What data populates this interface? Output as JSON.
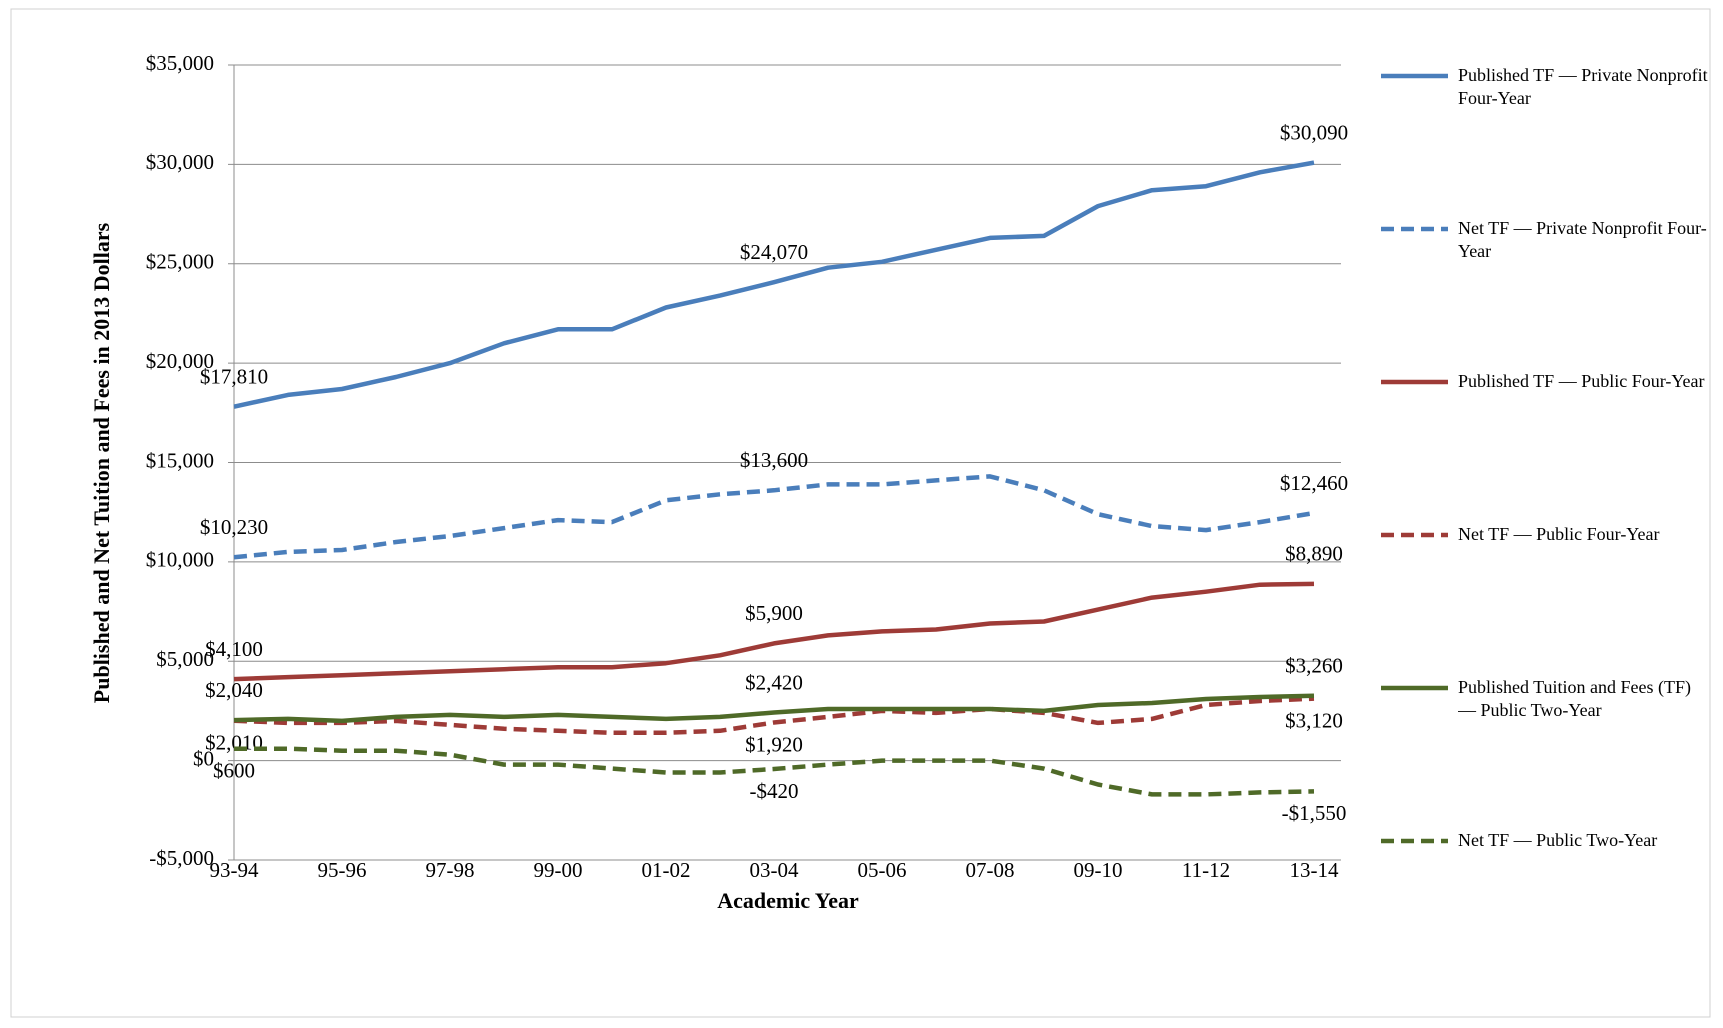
{
  "chart_data": {
    "type": "line",
    "x_label": "Academic Year",
    "y_label": "Published and Net Tuition and Fees in 2013 Dollars",
    "categories": [
      "93-94",
      null,
      "95-96",
      null,
      "97-98",
      null,
      "99-00",
      null,
      "01-02",
      null,
      "03-04",
      null,
      "05-06",
      null,
      "07-08",
      null,
      "09-10",
      null,
      "11-12",
      null,
      "13-14"
    ],
    "ylim": [
      -5000,
      35000
    ],
    "yticks": [
      {
        "value": -5000,
        "label": "-$5,000"
      },
      {
        "value": 0,
        "label": "$0"
      },
      {
        "value": 5000,
        "label": "$5,000"
      },
      {
        "value": 10000,
        "label": "$10,000"
      },
      {
        "value": 15000,
        "label": "$15,000"
      },
      {
        "value": 20000,
        "label": "$20,000"
      },
      {
        "value": 25000,
        "label": "$25,000"
      },
      {
        "value": 30000,
        "label": "$30,000"
      },
      {
        "value": 35000,
        "label": "$35,000"
      }
    ],
    "grid": true,
    "legend": "right",
    "series": [
      {
        "name": "Published TF — Private Nonprofit Four-Year",
        "color": "#4a7ebb",
        "dashed": false,
        "label_position": "above",
        "values": [
          17810,
          18400,
          18700,
          19300,
          20000,
          21000,
          21700,
          21700,
          22800,
          23400,
          24070,
          24800,
          25100,
          25700,
          26300,
          26400,
          27900,
          28700,
          28900,
          29600,
          30090
        ],
        "value_labels": [
          "$17,810",
          null,
          null,
          null,
          null,
          null,
          null,
          null,
          null,
          null,
          "$24,070",
          null,
          null,
          null,
          null,
          null,
          null,
          null,
          null,
          null,
          "$30,090"
        ]
      },
      {
        "name": "Net TF — Private Nonprofit Four-Year",
        "color": "#4a7ebb",
        "dashed": true,
        "label_position": "above",
        "values": [
          10230,
          10500,
          10600,
          11000,
          11300,
          11700,
          12100,
          12000,
          13100,
          13400,
          13600,
          13900,
          13900,
          14100,
          14300,
          13600,
          12400,
          11800,
          11600,
          12000,
          12460
        ],
        "value_labels": [
          "$10,230",
          null,
          null,
          null,
          null,
          null,
          null,
          null,
          null,
          null,
          "$13,600",
          null,
          null,
          null,
          null,
          null,
          null,
          null,
          null,
          null,
          "$12,460"
        ]
      },
      {
        "name": "Published TF — Public Four-Year",
        "color": "#9e3b37",
        "dashed": false,
        "label_position": "above",
        "values": [
          4100,
          4200,
          4300,
          4400,
          4500,
          4600,
          4700,
          4700,
          4900,
          5300,
          5900,
          6300,
          6500,
          6600,
          6900,
          7000,
          7600,
          8200,
          8500,
          8850,
          8890
        ],
        "value_labels": [
          "$4,100",
          null,
          null,
          null,
          null,
          null,
          null,
          null,
          null,
          null,
          "$5,900",
          null,
          null,
          null,
          null,
          null,
          null,
          null,
          null,
          null,
          "$8,890"
        ]
      },
      {
        "name": "Net TF — Public Four-Year",
        "color": "#9e3b37",
        "dashed": true,
        "label_position": "below",
        "values": [
          2010,
          1900,
          1900,
          2000,
          1800,
          1600,
          1500,
          1400,
          1400,
          1500,
          1920,
          2200,
          2500,
          2400,
          2600,
          2400,
          1900,
          2100,
          2800,
          3000,
          3120
        ],
        "value_labels": [
          "$2,010",
          null,
          null,
          null,
          null,
          null,
          null,
          null,
          null,
          null,
          "$1,920",
          null,
          null,
          null,
          null,
          null,
          null,
          null,
          null,
          null,
          "$3,120"
        ]
      },
      {
        "name": "Published Tuition and Fees (TF) — Public Two-Year",
        "color": "#4f6a28",
        "dashed": false,
        "label_position": "above",
        "values": [
          2040,
          2100,
          2000,
          2200,
          2300,
          2200,
          2300,
          2200,
          2100,
          2200,
          2420,
          2600,
          2600,
          2600,
          2600,
          2500,
          2800,
          2900,
          3100,
          3200,
          3260
        ],
        "value_labels": [
          "$2,040",
          null,
          null,
          null,
          null,
          null,
          null,
          null,
          null,
          null,
          "$2,420",
          null,
          null,
          null,
          null,
          null,
          null,
          null,
          null,
          null,
          "$3,260"
        ]
      },
      {
        "name": "Net TF — Public Two-Year",
        "color": "#4f6a28",
        "dashed": true,
        "label_position": "below",
        "values": [
          600,
          600,
          500,
          500,
          300,
          -200,
          -200,
          -400,
          -600,
          -600,
          -420,
          -200,
          0,
          0,
          0,
          -400,
          -1200,
          -1700,
          -1700,
          -1600,
          -1550
        ],
        "value_labels": [
          "$600",
          null,
          null,
          null,
          null,
          null,
          null,
          null,
          null,
          null,
          "-$420",
          null,
          null,
          null,
          null,
          null,
          null,
          null,
          null,
          null,
          "-$1,550"
        ]
      }
    ]
  }
}
